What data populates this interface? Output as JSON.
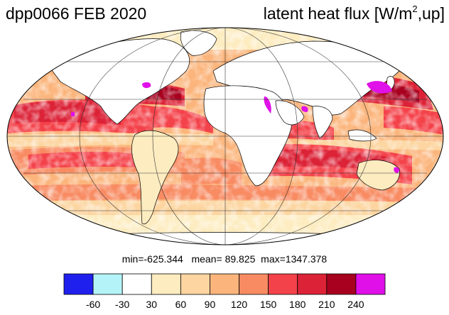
{
  "title": {
    "left": "dpp0066 FEB 2020",
    "right_prefix": "latent heat flux [W/m",
    "right_sup": "2",
    "right_suffix": ",up]"
  },
  "stats": {
    "min_label": "min=",
    "min": "-625.344",
    "mean_label": "mean=",
    "mean": "89.825",
    "max_label": "max=",
    "max": "1347.378"
  },
  "colorbar": {
    "colors": [
      "#2020ee",
      "#b4f4f8",
      "#ffffff",
      "#fdecc0",
      "#fcd5a0",
      "#fbb57c",
      "#f88b62",
      "#f4424a",
      "#dc2237",
      "#a8011f",
      "#e010e8"
    ],
    "ticks": [
      "-60",
      "-30",
      "30",
      "60",
      "90",
      "120",
      "150",
      "180",
      "210",
      "240"
    ]
  },
  "map": {
    "projection": "mollweide",
    "fill_colors": {
      "land": "#ffffff",
      "coast": "#000000",
      "grid": "#333333"
    }
  }
}
